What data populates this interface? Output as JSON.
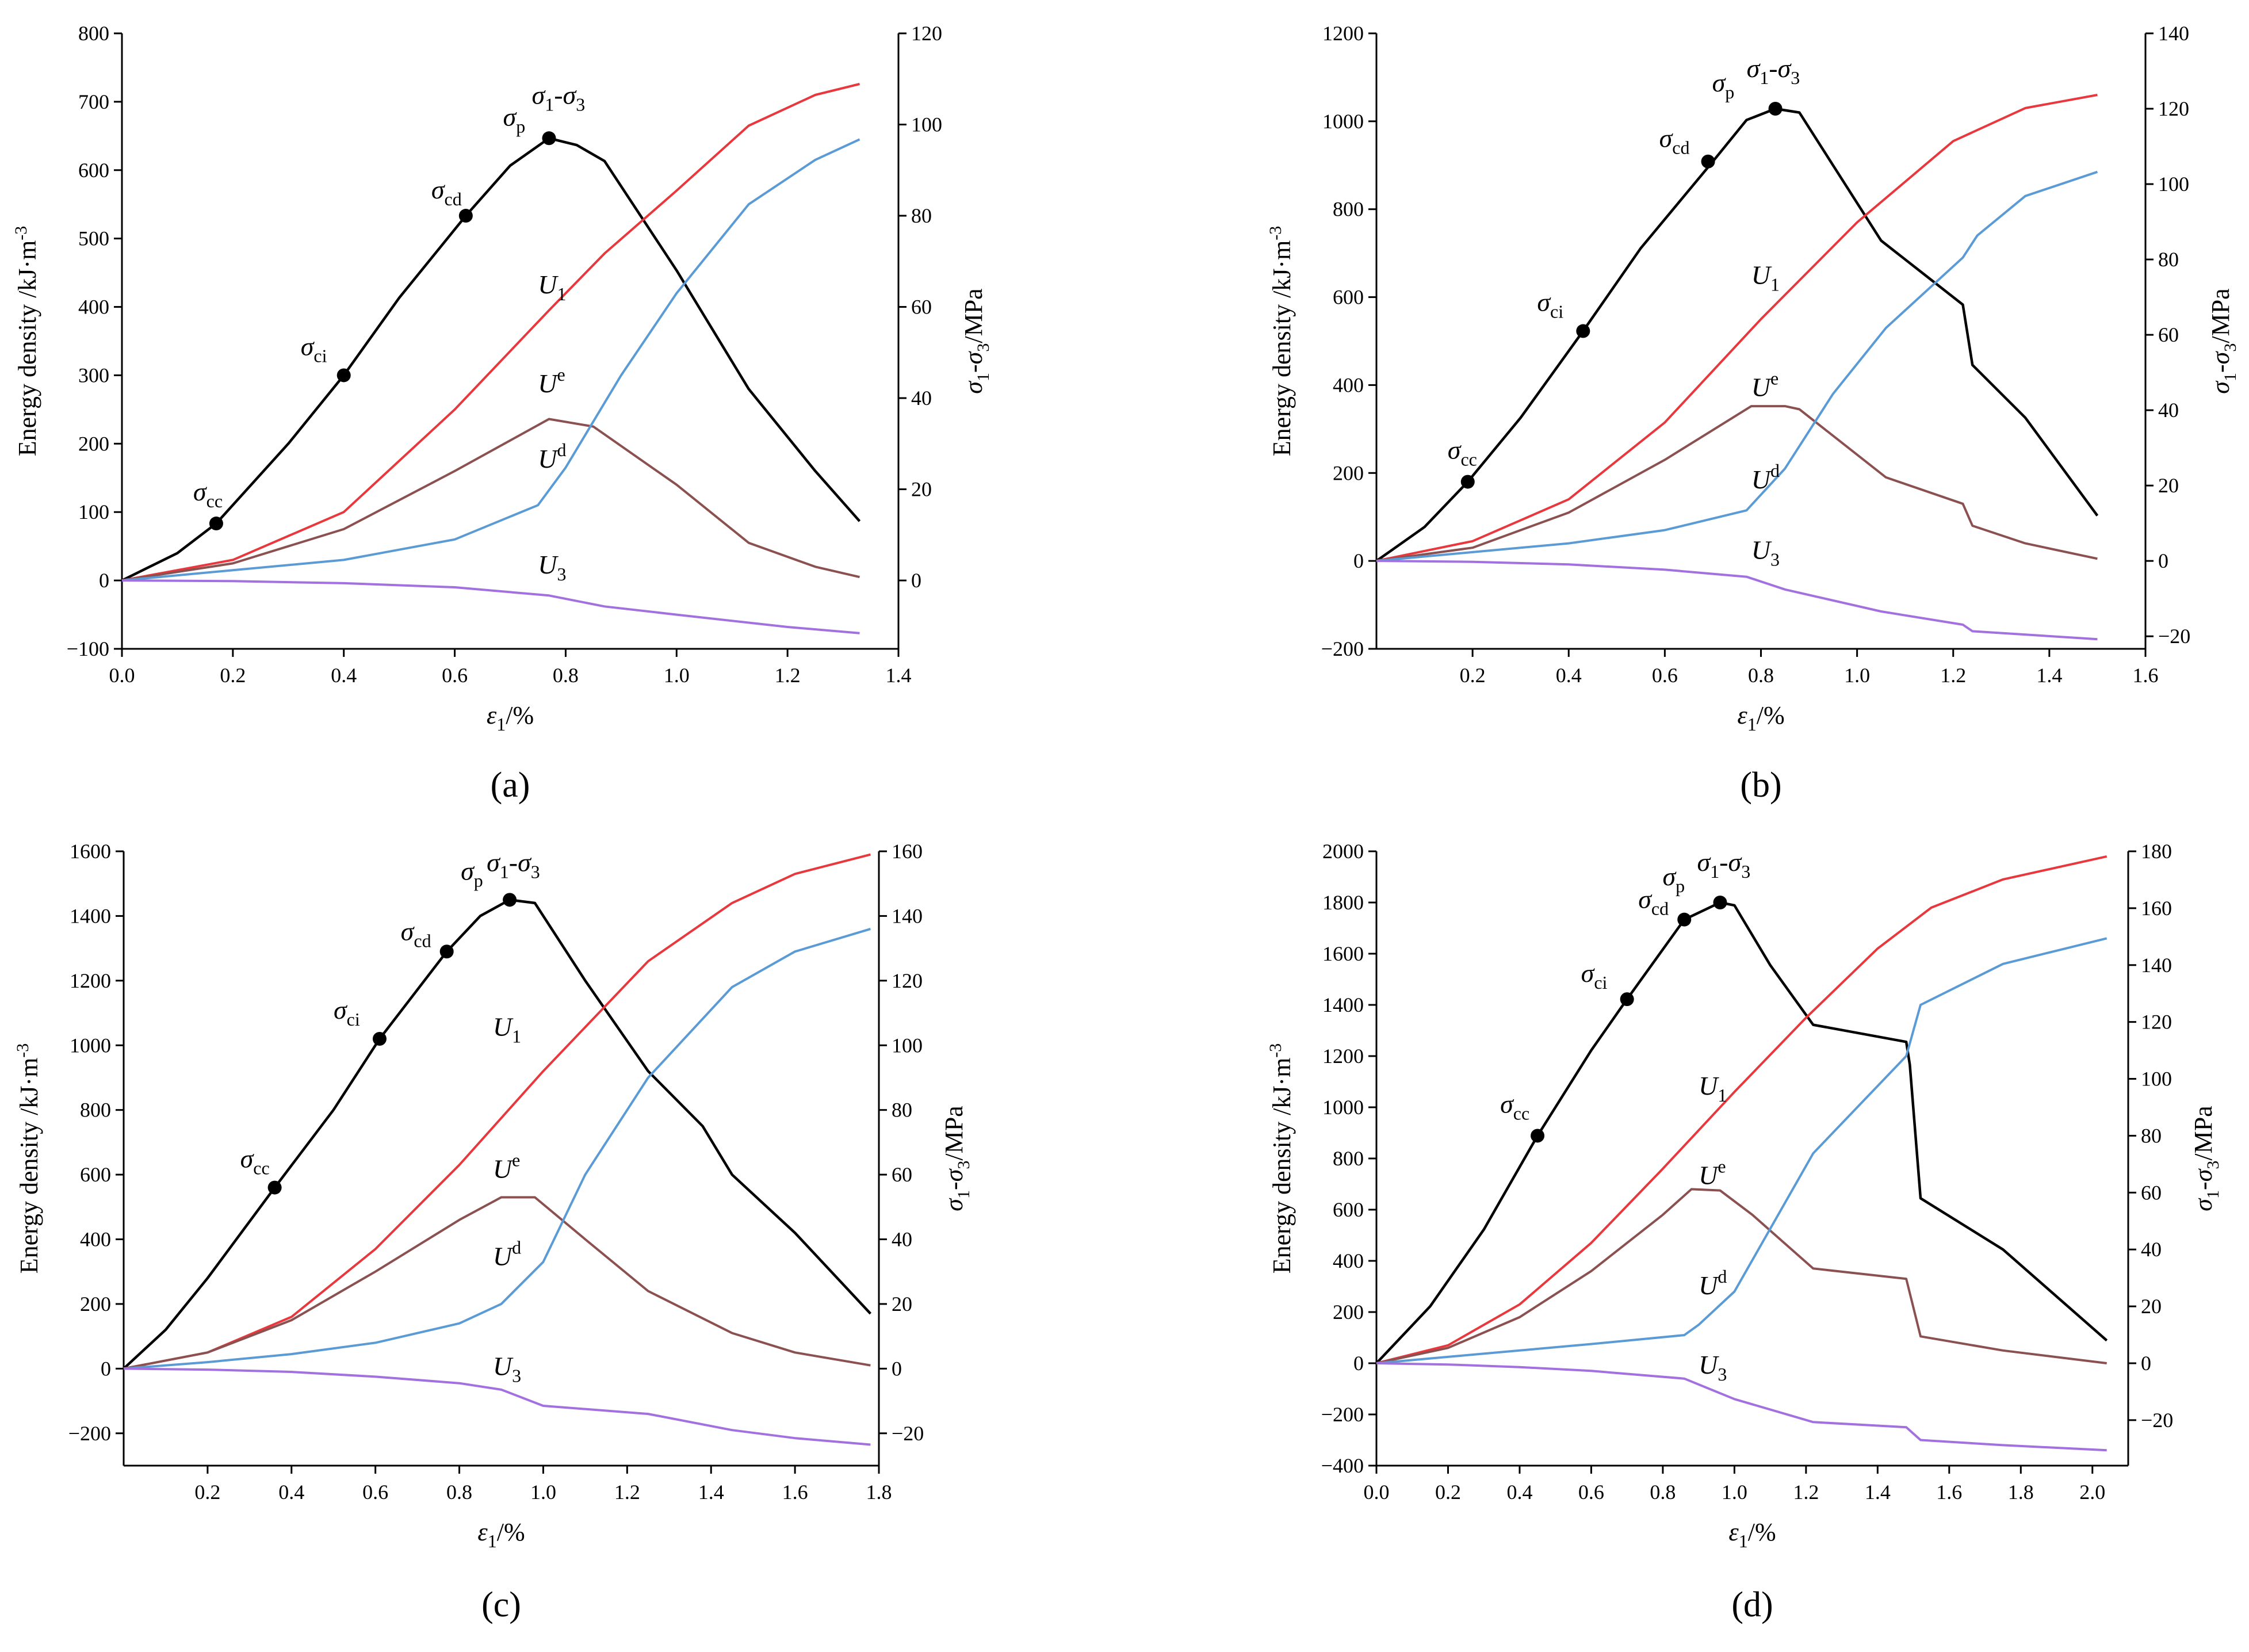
{
  "figure": {
    "panels": [
      "(a)",
      "(b)",
      "(c)",
      "(d)"
    ]
  },
  "chart_data": [
    {
      "type": "line",
      "panel": "(a)",
      "xlabel": "ε1/%",
      "ylabel": "Energy density /kJ·m-3",
      "y2label": "σ1-σ3/MPa",
      "xlim": [
        0,
        1.4
      ],
      "xticks": [
        0.0,
        0.2,
        0.4,
        0.6,
        0.8,
        1.0,
        1.2,
        1.4
      ],
      "xtick_decimals": 1,
      "ylim": [
        -100,
        800
      ],
      "yticks": [
        -100,
        0,
        100,
        200,
        300,
        400,
        500,
        600,
        700,
        800
      ],
      "y2lim": [
        -15,
        120
      ],
      "y2ticks": [
        0,
        20,
        40,
        60,
        80,
        100,
        120
      ],
      "series": [
        {
          "name": "σ1-σ3",
          "axis": "right",
          "color": "#000000",
          "x": [
            0,
            0.1,
            0.17,
            0.3,
            0.4,
            0.5,
            0.62,
            0.7,
            0.77,
            0.82,
            0.87,
            1.0,
            1.13,
            1.25,
            1.33
          ],
          "y": [
            0,
            6,
            12.5,
            30,
            45,
            62,
            80,
            91,
            97,
            95.5,
            92,
            68,
            42,
            24,
            13
          ]
        },
        {
          "name": "U1",
          "axis": "left",
          "color": "#e8383d",
          "x": [
            0,
            0.2,
            0.4,
            0.6,
            0.77,
            0.87,
            1.0,
            1.13,
            1.25,
            1.33
          ],
          "y": [
            0,
            30,
            100,
            250,
            395,
            478,
            570,
            665,
            710,
            726
          ]
        },
        {
          "name": "Ue",
          "axis": "left",
          "color": "#8b5050",
          "x": [
            0,
            0.2,
            0.4,
            0.6,
            0.77,
            0.85,
            1.0,
            1.13,
            1.25,
            1.33
          ],
          "y": [
            0,
            25,
            75,
            160,
            236,
            225,
            140,
            55,
            20,
            5
          ]
        },
        {
          "name": "Ud",
          "axis": "left",
          "color": "#5b9bd5",
          "x": [
            0,
            0.2,
            0.4,
            0.6,
            0.75,
            0.8,
            0.9,
            1.0,
            1.13,
            1.25,
            1.33
          ],
          "y": [
            0,
            15,
            30,
            60,
            110,
            165,
            300,
            420,
            550,
            615,
            645
          ]
        },
        {
          "name": "U3",
          "axis": "left",
          "color": "#a370e0",
          "x": [
            0,
            0.2,
            0.4,
            0.6,
            0.77,
            0.87,
            1.0,
            1.2,
            1.33
          ],
          "y": [
            0,
            -1,
            -4,
            -10,
            -22,
            -38,
            -50,
            -68,
            -77
          ]
        }
      ],
      "stage_points": [
        {
          "label": "σcc",
          "x": 0.17,
          "y": 12.5
        },
        {
          "label": "σci",
          "x": 0.4,
          "y": 45
        },
        {
          "label": "σcd",
          "x": 0.62,
          "y": 80
        },
        {
          "label": "σp",
          "x": 0.77,
          "y": 97
        }
      ]
    },
    {
      "type": "line",
      "panel": "(b)",
      "xlabel": "ε1/%",
      "ylabel": "Energy density /kJ·m-3",
      "y2label": "σ1-σ3/MPa",
      "xlim": [
        0,
        1.6
      ],
      "xticks": [
        0.2,
        0.4,
        0.6,
        0.8,
        1.0,
        1.2,
        1.4,
        1.6
      ],
      "xtick_decimals": 1,
      "ylim": [
        -200,
        1200
      ],
      "yticks": [
        -200,
        0,
        200,
        400,
        600,
        800,
        1000,
        1200
      ],
      "y2lim": [
        -23.33,
        140
      ],
      "y2ticks": [
        -20,
        0,
        20,
        40,
        60,
        80,
        100,
        120,
        140
      ],
      "series": [
        {
          "name": "σ1-σ3",
          "axis": "right",
          "color": "#000000",
          "x": [
            0,
            0.1,
            0.19,
            0.3,
            0.43,
            0.55,
            0.7,
            0.77,
            0.83,
            0.88,
            0.95,
            1.05,
            1.15,
            1.22,
            1.24,
            1.35,
            1.5
          ],
          "y": [
            0,
            9,
            21,
            38,
            61,
            83,
            106,
            117,
            120,
            119,
            105,
            85,
            75,
            68,
            52,
            38,
            12
          ]
        },
        {
          "name": "U1",
          "axis": "left",
          "color": "#e8383d",
          "x": [
            0,
            0.2,
            0.4,
            0.6,
            0.8,
            1.0,
            1.2,
            1.35,
            1.5
          ],
          "y": [
            0,
            45,
            140,
            315,
            550,
            770,
            955,
            1030,
            1060
          ]
        },
        {
          "name": "Ue",
          "axis": "left",
          "color": "#8b5050",
          "x": [
            0,
            0.2,
            0.4,
            0.6,
            0.78,
            0.85,
            0.88,
            1.06,
            1.22,
            1.24,
            1.35,
            1.5
          ],
          "y": [
            0,
            30,
            110,
            230,
            352,
            352,
            345,
            190,
            130,
            80,
            40,
            5
          ]
        },
        {
          "name": "Ud",
          "axis": "left",
          "color": "#5b9bd5",
          "x": [
            0,
            0.2,
            0.4,
            0.6,
            0.77,
            0.85,
            0.95,
            1.06,
            1.22,
            1.25,
            1.35,
            1.5
          ],
          "y": [
            0,
            20,
            40,
            70,
            115,
            210,
            380,
            530,
            690,
            740,
            830,
            885
          ]
        },
        {
          "name": "U3",
          "axis": "left",
          "color": "#a370e0",
          "x": [
            0,
            0.2,
            0.4,
            0.6,
            0.77,
            0.85,
            1.05,
            1.22,
            1.24,
            1.5
          ],
          "y": [
            0,
            -2,
            -8,
            -20,
            -36,
            -65,
            -115,
            -145,
            -160,
            -178
          ]
        }
      ],
      "stage_points": [
        {
          "label": "σcc",
          "x": 0.19,
          "y": 21
        },
        {
          "label": "σci",
          "x": 0.43,
          "y": 61
        },
        {
          "label": "σcd",
          "x": 0.69,
          "y": 106
        },
        {
          "label": "σp",
          "x": 0.83,
          "y": 120
        }
      ]
    },
    {
      "type": "line",
      "panel": "(c)",
      "xlabel": "ε1/%",
      "ylabel": "Energy density  /kJ·m-3",
      "y2label": "σ1-σ3/MPa",
      "xlim": [
        0,
        1.8
      ],
      "xticks": [
        0.2,
        0.4,
        0.6,
        0.8,
        1.0,
        1.2,
        1.4,
        1.6,
        1.8
      ],
      "xtick_decimals": 1,
      "ylim": [
        -300,
        1600
      ],
      "yticks": [
        -200,
        0,
        200,
        400,
        600,
        800,
        1000,
        1200,
        1400,
        1600
      ],
      "y2lim": [
        -30,
        160
      ],
      "y2ticks": [
        -20,
        0,
        20,
        40,
        60,
        80,
        100,
        120,
        140,
        160
      ],
      "series": [
        {
          "name": "σ1-σ3",
          "axis": "right",
          "color": "#000000",
          "x": [
            0,
            0.1,
            0.2,
            0.36,
            0.5,
            0.61,
            0.77,
            0.85,
            0.92,
            0.98,
            1.1,
            1.25,
            1.38,
            1.45,
            1.6,
            1.78
          ],
          "y": [
            0,
            12,
            28,
            56,
            80,
            102,
            129,
            140,
            145,
            144,
            120,
            92,
            75,
            60,
            42,
            17
          ]
        },
        {
          "name": "U1",
          "axis": "left",
          "color": "#e8383d",
          "x": [
            0,
            0.2,
            0.4,
            0.6,
            0.8,
            1.0,
            1.25,
            1.45,
            1.6,
            1.78
          ],
          "y": [
            0,
            50,
            160,
            370,
            630,
            920,
            1260,
            1440,
            1530,
            1590
          ]
        },
        {
          "name": "Ue",
          "axis": "left",
          "color": "#8b5050",
          "x": [
            0,
            0.2,
            0.4,
            0.6,
            0.8,
            0.9,
            0.98,
            1.1,
            1.25,
            1.45,
            1.6,
            1.78
          ],
          "y": [
            0,
            50,
            150,
            300,
            460,
            530,
            530,
            400,
            240,
            110,
            50,
            10
          ]
        },
        {
          "name": "Ud",
          "axis": "left",
          "color": "#5b9bd5",
          "x": [
            0,
            0.2,
            0.4,
            0.6,
            0.8,
            0.9,
            1.0,
            1.1,
            1.25,
            1.45,
            1.6,
            1.78
          ],
          "y": [
            0,
            20,
            45,
            80,
            140,
            200,
            330,
            600,
            900,
            1180,
            1290,
            1360
          ]
        },
        {
          "name": "U3",
          "axis": "left",
          "color": "#a370e0",
          "x": [
            0,
            0.2,
            0.4,
            0.6,
            0.8,
            0.9,
            1.0,
            1.25,
            1.45,
            1.6,
            1.78
          ],
          "y": [
            0,
            -3,
            -10,
            -25,
            -45,
            -65,
            -115,
            -140,
            -190,
            -215,
            -235
          ]
        }
      ],
      "stage_points": [
        {
          "label": "σcc",
          "x": 0.36,
          "y": 56
        },
        {
          "label": "σci",
          "x": 0.61,
          "y": 102
        },
        {
          "label": "σcd",
          "x": 0.77,
          "y": 129
        },
        {
          "label": "σp",
          "x": 0.92,
          "y": 145
        }
      ]
    },
    {
      "type": "line",
      "panel": "(d)",
      "xlabel": "ε1/%",
      "ylabel": "Energy density  /kJ·m-3",
      "y2label": "σ1-σ3/MPa",
      "xlim": [
        0,
        2.1
      ],
      "xticks": [
        0.0,
        0.2,
        0.4,
        0.6,
        0.8,
        1.0,
        1.2,
        1.4,
        1.6,
        1.8,
        2.0
      ],
      "xtick_decimals": 1,
      "ylim": [
        -400,
        2000
      ],
      "yticks": [
        -400,
        -200,
        0,
        200,
        400,
        600,
        800,
        1000,
        1200,
        1400,
        1600,
        1800,
        2000
      ],
      "y2lim": [
        -36,
        180
      ],
      "y2ticks": [
        -20,
        0,
        20,
        40,
        60,
        80,
        100,
        120,
        140,
        160,
        180
      ],
      "series": [
        {
          "name": "σ1-σ3",
          "axis": "right",
          "color": "#000000",
          "x": [
            0,
            0.15,
            0.3,
            0.45,
            0.6,
            0.7,
            0.86,
            0.96,
            1.0,
            1.1,
            1.22,
            1.48,
            1.49,
            1.52,
            1.75,
            2.04
          ],
          "y": [
            0,
            20,
            47,
            80,
            110,
            128,
            156,
            162,
            161,
            140,
            119,
            113,
            105,
            58,
            40,
            8
          ]
        },
        {
          "name": "U1",
          "axis": "left",
          "color": "#e8383d",
          "x": [
            0,
            0.2,
            0.4,
            0.6,
            0.8,
            1.0,
            1.2,
            1.4,
            1.55,
            1.75,
            2.04
          ],
          "y": [
            0,
            70,
            230,
            470,
            760,
            1060,
            1350,
            1620,
            1780,
            1890,
            1980
          ]
        },
        {
          "name": "Ue",
          "axis": "left",
          "color": "#8b5050",
          "x": [
            0,
            0.2,
            0.4,
            0.6,
            0.8,
            0.88,
            0.96,
            1.05,
            1.22,
            1.48,
            1.52,
            1.75,
            2.04
          ],
          "y": [
            0,
            60,
            180,
            360,
            580,
            680,
            675,
            580,
            370,
            330,
            105,
            50,
            0
          ]
        },
        {
          "name": "Ud",
          "axis": "left",
          "color": "#5b9bd5",
          "x": [
            0,
            0.2,
            0.4,
            0.6,
            0.86,
            0.9,
            1.0,
            1.22,
            1.48,
            1.52,
            1.75,
            2.04
          ],
          "y": [
            0,
            25,
            50,
            75,
            110,
            150,
            280,
            820,
            1200,
            1400,
            1560,
            1660
          ]
        },
        {
          "name": "U3",
          "axis": "left",
          "color": "#a370e0",
          "x": [
            0,
            0.2,
            0.4,
            0.6,
            0.86,
            1.0,
            1.22,
            1.48,
            1.52,
            1.75,
            2.04
          ],
          "y": [
            0,
            -5,
            -15,
            -30,
            -60,
            -140,
            -230,
            -250,
            -300,
            -320,
            -340
          ]
        }
      ],
      "stage_points": [
        {
          "label": "σcc",
          "x": 0.45,
          "y": 80
        },
        {
          "label": "σci",
          "x": 0.7,
          "y": 128
        },
        {
          "label": "σcd",
          "x": 0.86,
          "y": 156
        },
        {
          "label": "σp",
          "x": 0.96,
          "y": 162
        }
      ]
    }
  ]
}
